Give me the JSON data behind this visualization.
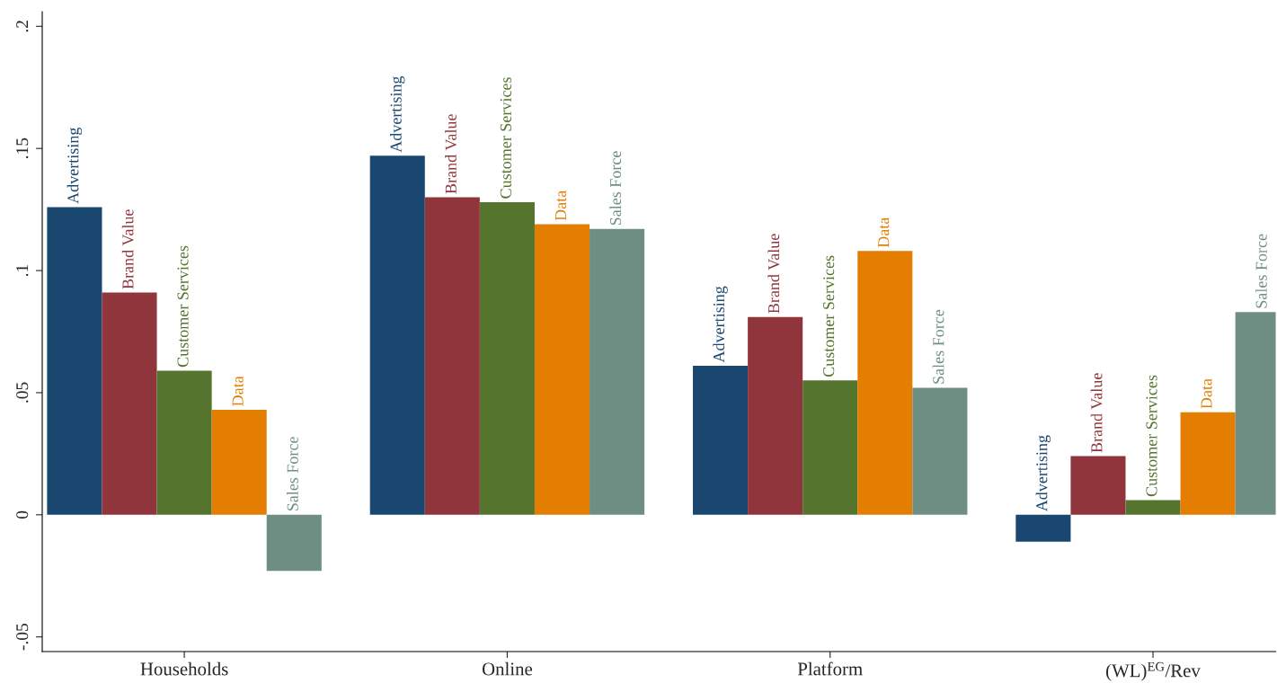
{
  "chart_data": {
    "type": "bar",
    "categories": [
      "Households",
      "Online",
      "Platform",
      "(WL)$^{EG}$/Rev"
    ],
    "series": [
      {
        "name": "Advertising",
        "color": "#1a476f",
        "values": [
          0.126,
          0.147,
          0.061,
          -0.011
        ]
      },
      {
        "name": "Brand Value",
        "color": "#90353b",
        "values": [
          0.091,
          0.13,
          0.081,
          0.024
        ]
      },
      {
        "name": "Customer Services",
        "color": "#55752f",
        "values": [
          0.059,
          0.128,
          0.055,
          0.006
        ]
      },
      {
        "name": "Data",
        "color": "#e37e00",
        "values": [
          0.043,
          0.119,
          0.108,
          0.042
        ]
      },
      {
        "name": "Sales Force",
        "color": "#6e8e84",
        "values": [
          -0.023,
          0.117,
          0.052,
          0.083
        ]
      }
    ],
    "ylim": [
      -0.056,
      0.206
    ],
    "yticks": [
      {
        "value": -0.05,
        "label": "-.05"
      },
      0,
      {
        "value": 0.05,
        "label": ".05"
      },
      {
        "value": 0.1,
        "label": ".1"
      },
      {
        "value": 0.15,
        "label": ".15"
      },
      {
        "value": 0.2,
        "label": ".2"
      }
    ],
    "grid": false,
    "legend": false
  }
}
